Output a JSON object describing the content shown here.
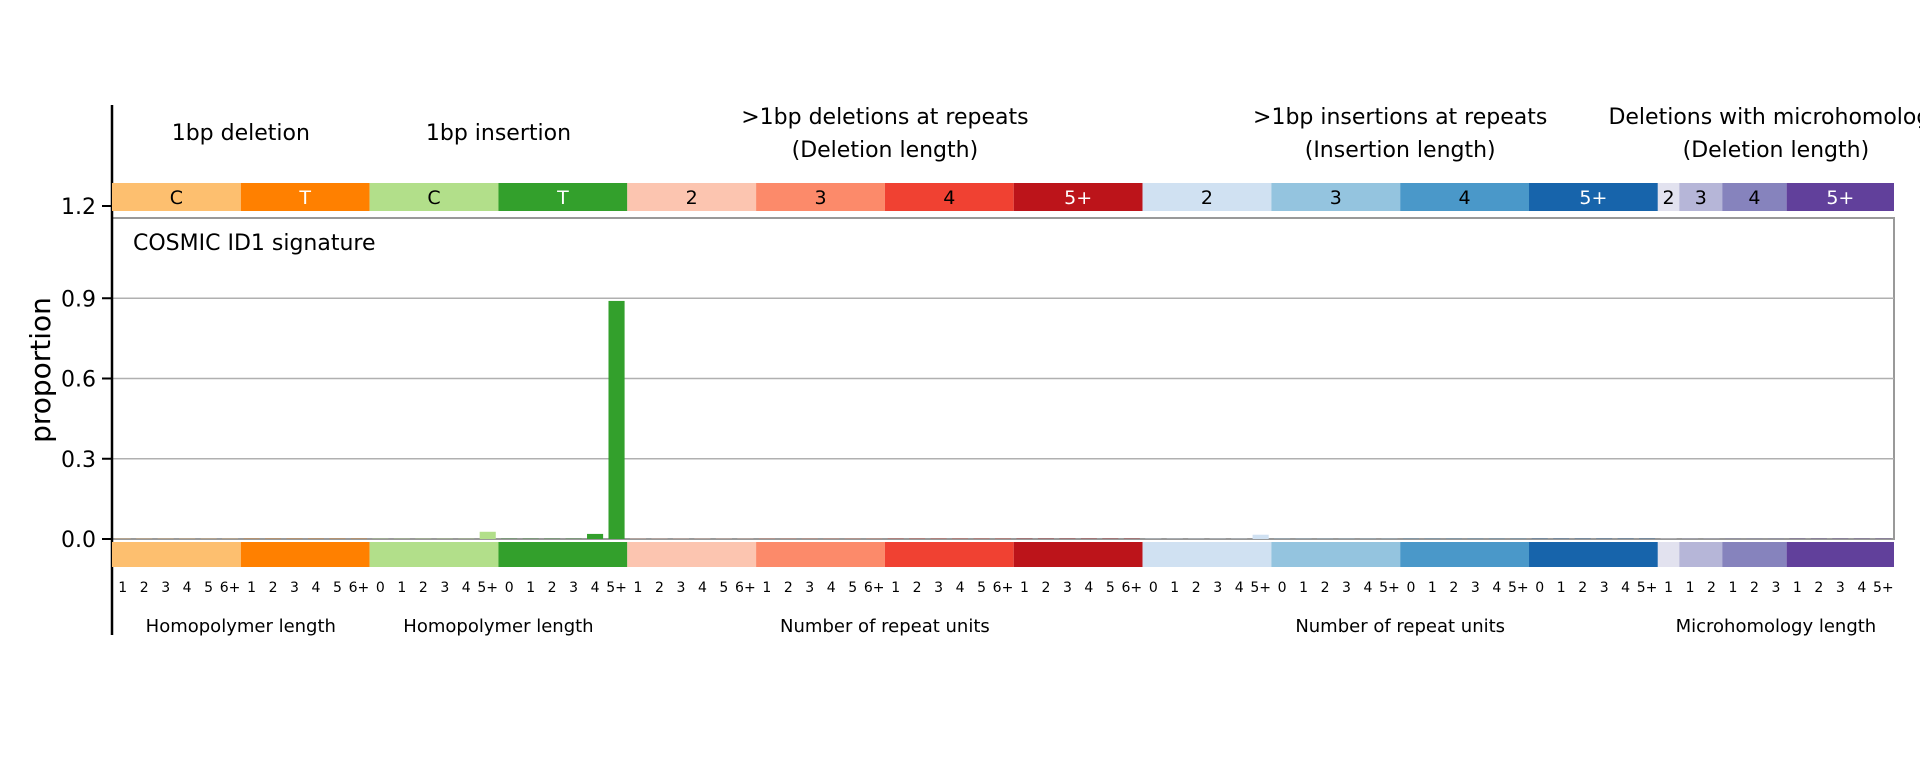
{
  "chart_data": {
    "type": "bar",
    "title": "COSMIC ID1 signature",
    "ylabel": "proportion",
    "ylim": [
      0,
      1.2
    ],
    "yticks": [
      0.0,
      0.3,
      0.6,
      0.9,
      1.2
    ],
    "ytick_labels": [
      "0.0",
      "0.3",
      "0.6",
      "0.9",
      "1.2"
    ],
    "grid": true,
    "groups": [
      {
        "title_lines": [
          "1bp deletion"
        ],
        "subtitle": "Homopolymer length",
        "blocks": [
          {
            "label": "C",
            "color": "#fdbf6f",
            "text_color": "#000000",
            "ticks": [
              "1",
              "2",
              "3",
              "4",
              "5",
              "6+"
            ]
          },
          {
            "label": "T",
            "color": "#ff8000",
            "text_color": "#ffffff",
            "ticks": [
              "1",
              "2",
              "3",
              "4",
              "5",
              "6+"
            ]
          }
        ]
      },
      {
        "title_lines": [
          "1bp insertion"
        ],
        "subtitle": "Homopolymer length",
        "blocks": [
          {
            "label": "C",
            "color": "#b2df8a",
            "text_color": "#000000",
            "ticks": [
              "0",
              "1",
              "2",
              "3",
              "4",
              "5+"
            ]
          },
          {
            "label": "T",
            "color": "#33a02c",
            "text_color": "#ffffff",
            "ticks": [
              "0",
              "1",
              "2",
              "3",
              "4",
              "5+"
            ]
          }
        ]
      },
      {
        "title_lines": [
          ">1bp deletions at repeats",
          "(Deletion length)"
        ],
        "subtitle": "Number of repeat units",
        "blocks": [
          {
            "label": "2",
            "color": "#fcc5b0",
            "text_color": "#000000",
            "ticks": [
              "1",
              "2",
              "3",
              "4",
              "5",
              "6+"
            ]
          },
          {
            "label": "3",
            "color": "#fc8a6a",
            "text_color": "#000000",
            "ticks": [
              "1",
              "2",
              "3",
              "4",
              "5",
              "6+"
            ]
          },
          {
            "label": "4",
            "color": "#f04132",
            "text_color": "#000000",
            "ticks": [
              "1",
              "2",
              "3",
              "4",
              "5",
              "6+"
            ]
          },
          {
            "label": "5+",
            "color": "#bc141a",
            "text_color": "#ffffff",
            "ticks": [
              "1",
              "2",
              "3",
              "4",
              "5",
              "6+"
            ]
          }
        ]
      },
      {
        "title_lines": [
          ">1bp insertions at repeats",
          "(Insertion length)"
        ],
        "subtitle": "Number of repeat units",
        "blocks": [
          {
            "label": "2",
            "color": "#d0e1f2",
            "text_color": "#000000",
            "ticks": [
              "0",
              "1",
              "2",
              "3",
              "4",
              "5+"
            ]
          },
          {
            "label": "3",
            "color": "#94c4df",
            "text_color": "#000000",
            "ticks": [
              "0",
              "1",
              "2",
              "3",
              "4",
              "5+"
            ]
          },
          {
            "label": "4",
            "color": "#4a98c9",
            "text_color": "#000000",
            "ticks": [
              "0",
              "1",
              "2",
              "3",
              "4",
              "5+"
            ]
          },
          {
            "label": "5+",
            "color": "#1764ab",
            "text_color": "#ffffff",
            "ticks": [
              "0",
              "1",
              "2",
              "3",
              "4",
              "5+"
            ]
          }
        ]
      },
      {
        "title_lines": [
          "Deletions with microhomology",
          "(Deletion length)"
        ],
        "subtitle": "Microhomology length",
        "blocks": [
          {
            "label": "2",
            "color": "#e2e2ef",
            "text_color": "#000000",
            "ticks": [
              "1"
            ]
          },
          {
            "label": "3",
            "color": "#b6b6d8",
            "text_color": "#000000",
            "ticks": [
              "1",
              "2"
            ]
          },
          {
            "label": "4",
            "color": "#8683bd",
            "text_color": "#000000",
            "ticks": [
              "1",
              "2",
              "3"
            ]
          },
          {
            "label": "5+",
            "color": "#61409b",
            "text_color": "#ffffff",
            "ticks": [
              "1",
              "2",
              "3",
              "4",
              "5+"
            ]
          }
        ]
      }
    ],
    "values": [
      0.001,
      0.001,
      0.001,
      0.001,
      0.001,
      0.001,
      0.001,
      0.001,
      0.001,
      0.001,
      0.001,
      0.001,
      0.001,
      0.001,
      0.001,
      0.001,
      0.001,
      0.027,
      0.001,
      0.001,
      0.001,
      0.001,
      0.019,
      0.89,
      0.001,
      0.001,
      0.001,
      0.001,
      0.001,
      0.001,
      0.001,
      0.001,
      0.001,
      0.001,
      0.001,
      0.001,
      0.001,
      0.001,
      0.001,
      0.001,
      0.001,
      0.001,
      0.001,
      0.001,
      0.001,
      0.001,
      0.001,
      0.001,
      0.001,
      0.001,
      0.001,
      0.001,
      0.001,
      0.016,
      0.001,
      0.001,
      0.001,
      0.001,
      0.001,
      0.001,
      0.001,
      0.001,
      0.001,
      0.001,
      0.001,
      0.001,
      0.001,
      0.001,
      0.001,
      0.001,
      0.001,
      0.001,
      0.001,
      0.001,
      0.001,
      0.001,
      0.001,
      0.001,
      0.001,
      0.001,
      0.001,
      0.001,
      0.001
    ]
  }
}
